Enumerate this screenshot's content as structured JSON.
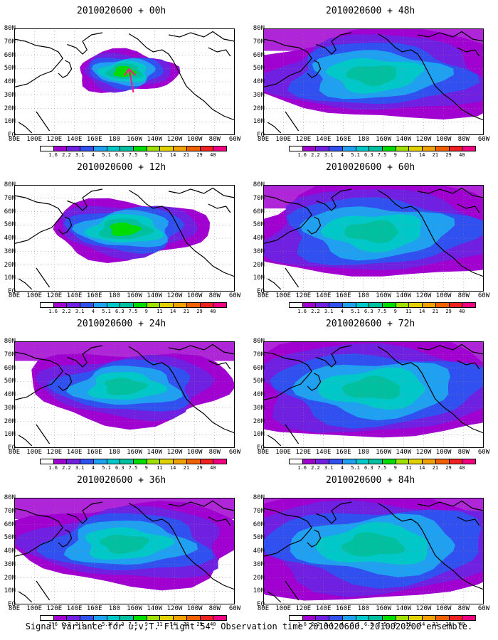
{
  "caption": "Signal Variance for u,v,T. Flight 54. Observation time 2010020600. 2010020200 ensemble.",
  "lat_labels": [
    "80N",
    "70N",
    "60N",
    "50N",
    "40N",
    "30N",
    "20N",
    "10N",
    "EQ"
  ],
  "lon_labels": [
    "80E",
    "100E",
    "120E",
    "140E",
    "160E",
    "180",
    "160W",
    "140W",
    "120W",
    "100W",
    "80W",
    "60W"
  ],
  "colorbar": {
    "levels": [
      "1.6",
      "2.2",
      "3.1",
      "4",
      "5.1",
      "6.3",
      "7.5",
      "9",
      "11",
      "14",
      "21",
      "29",
      "40"
    ],
    "colors": [
      "#ffffff",
      "#a000d0",
      "#7020e0",
      "#3050f0",
      "#20a0f0",
      "#00c8c8",
      "#00c0a0",
      "#00dc00",
      "#a0e000",
      "#e0d000",
      "#f0a000",
      "#f06000",
      "#f02020",
      "#f00080"
    ]
  },
  "panels": [
    {
      "title": "2010020600 + 00h",
      "spread": 0.12,
      "peak_level": 7
    },
    {
      "title": "2010020600 + 12h",
      "spread": 0.32,
      "peak_level": 7
    },
    {
      "title": "2010020600 + 24h",
      "spread": 0.48,
      "peak_level": 6
    },
    {
      "title": "2010020600 + 36h",
      "spread": 0.6,
      "peak_level": 6
    },
    {
      "title": "2010020600 + 48h",
      "spread": 0.68,
      "peak_level": 6
    },
    {
      "title": "2010020600 + 60h",
      "spread": 0.76,
      "peak_level": 6
    },
    {
      "title": "2010020600 + 72h",
      "spread": 0.84,
      "peak_level": 6
    },
    {
      "title": "2010020600 + 84h",
      "spread": 0.9,
      "peak_level": 6
    }
  ]
}
